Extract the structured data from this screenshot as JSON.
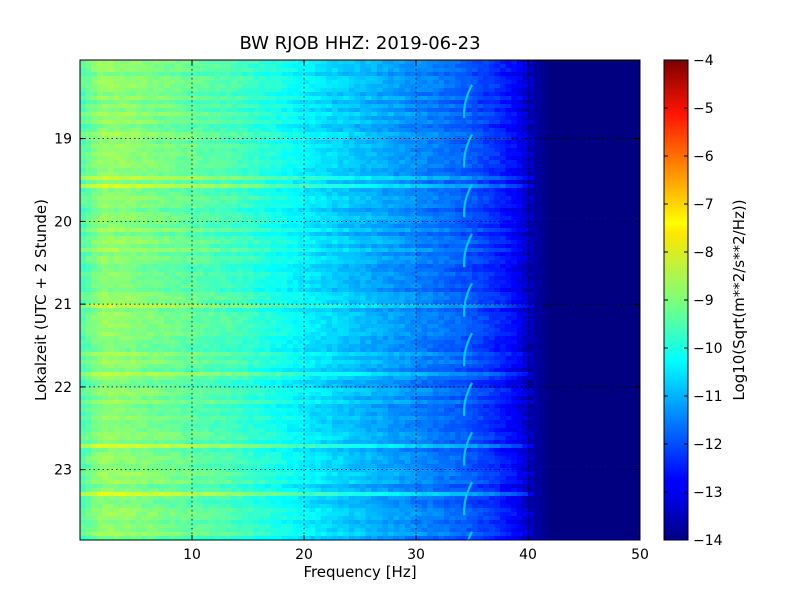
{
  "chart_data": {
    "type": "heatmap",
    "title": "BW RJOB HHZ: 2019-06-23",
    "xlabel": "Frequency [Hz]",
    "ylabel": "Lokalzeit (UTC + 2 Stunde)",
    "xlim": [
      0,
      50
    ],
    "ylim": [
      18.05,
      23.85
    ],
    "x_ticks": [
      10,
      20,
      30,
      40,
      50
    ],
    "x_tick_labels": [
      "10",
      "20",
      "30",
      "40",
      "50"
    ],
    "y_ticks": [
      19,
      20,
      21,
      22,
      23
    ],
    "y_tick_labels": [
      "19",
      "20",
      "21",
      "22",
      "23"
    ],
    "grid": true,
    "colorbar": {
      "label": "Log10(Sqrt(m**2/s**2/Hz))",
      "range": [
        -14,
        -4
      ],
      "ticks": [
        -4,
        -5,
        -6,
        -7,
        -8,
        -9,
        -10,
        -11,
        -12,
        -13,
        -14
      ],
      "tick_labels": [
        "−4",
        "−5",
        "−6",
        "−7",
        "−8",
        "−9",
        "−10",
        "−11",
        "−12",
        "−13",
        "−14"
      ],
      "colormap": "jet"
    },
    "spectral_profile": {
      "frequency_hz": [
        0,
        2,
        4,
        7,
        10,
        14,
        18,
        22,
        26,
        30,
        34,
        37,
        39,
        40.5,
        42,
        50
      ],
      "log10_amplitude": [
        -9.5,
        -8.8,
        -8.9,
        -9.1,
        -9.3,
        -9.6,
        -10.1,
        -10.6,
        -11.0,
        -11.4,
        -11.8,
        -12.3,
        -12.8,
        -13.6,
        -14,
        -14
      ]
    },
    "periodic_feature": {
      "description_frequency_hz": [
        34.2,
        35.0
      ],
      "times_hour": [
        18.4,
        19.0,
        19.6,
        20.2,
        20.8,
        21.4,
        22.0,
        22.6,
        23.2,
        23.8
      ],
      "log10_amplitude": -10.8
    }
  }
}
